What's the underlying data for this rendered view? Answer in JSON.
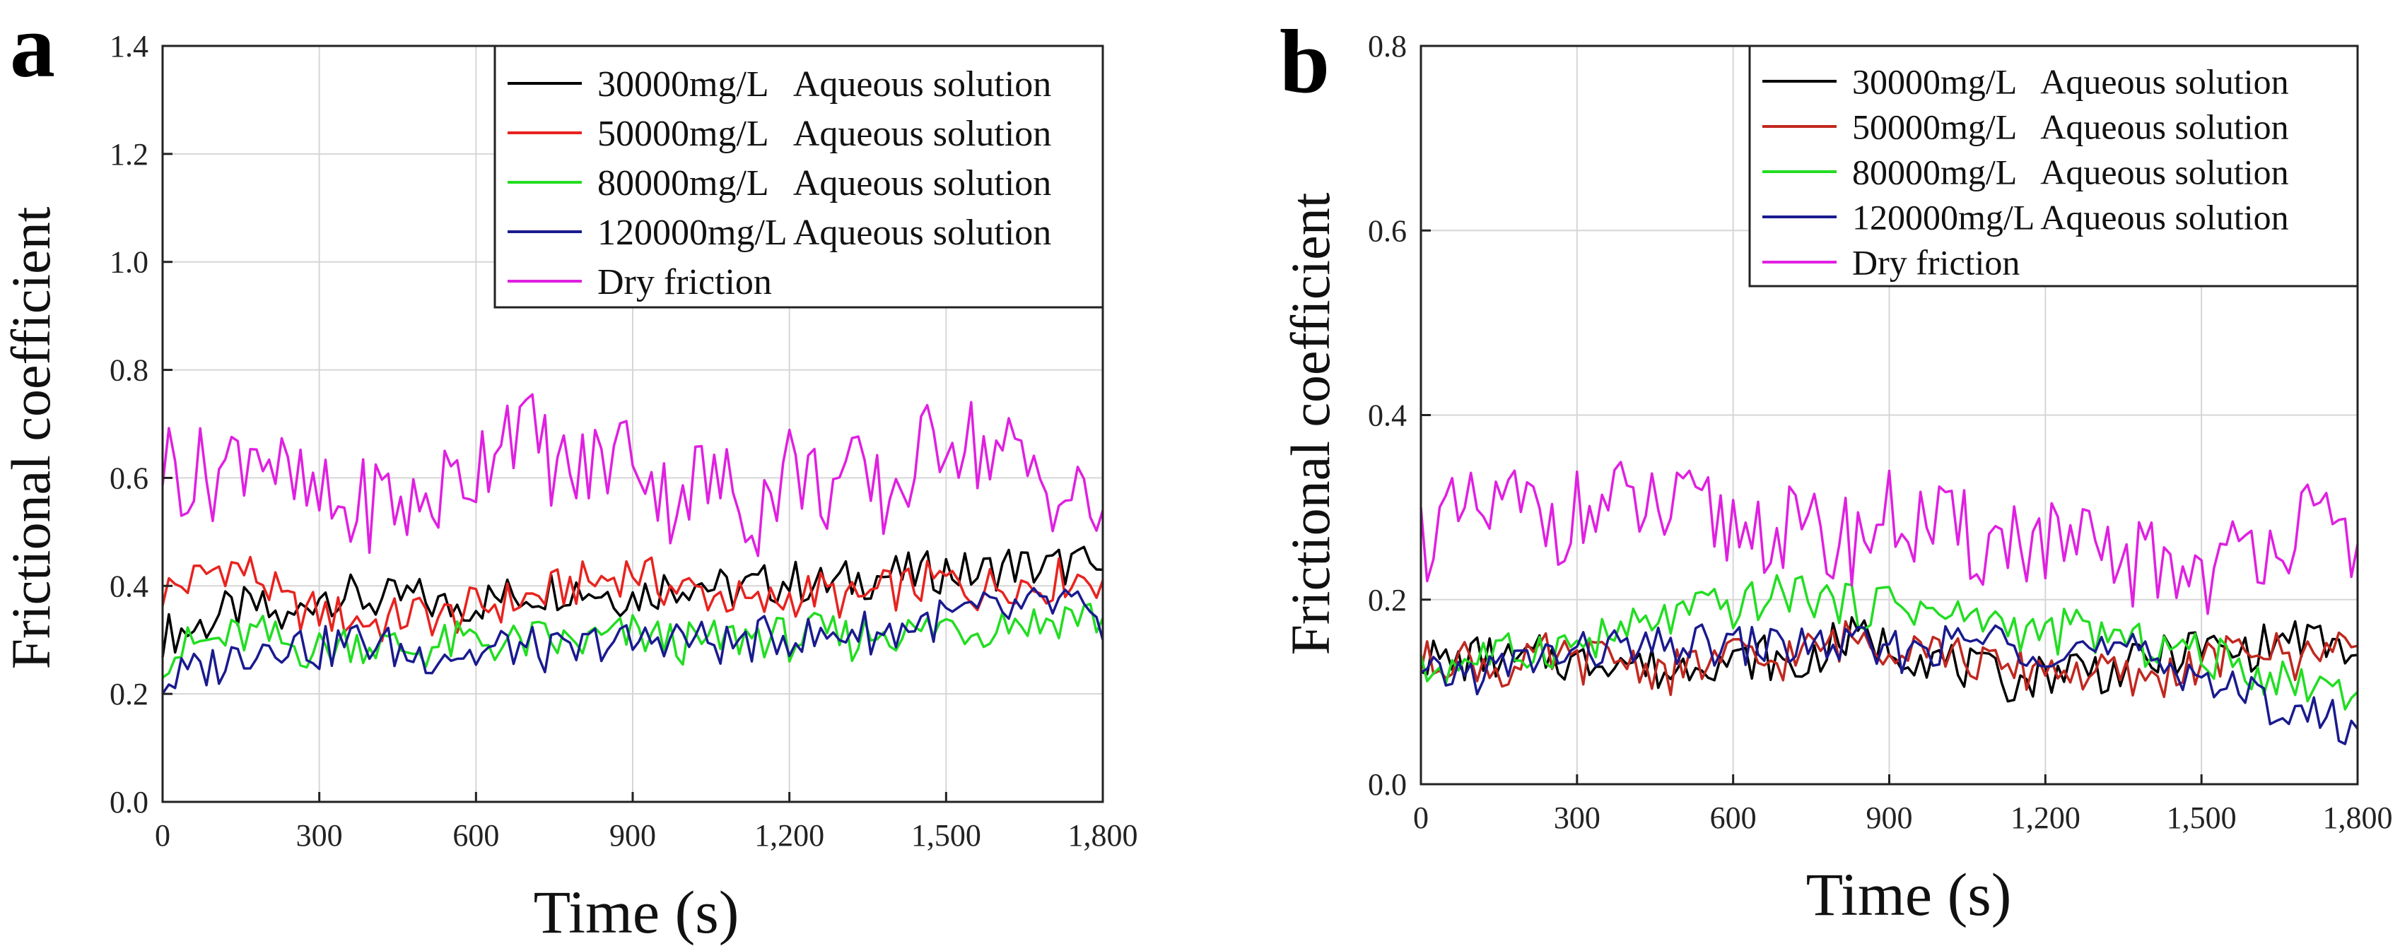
{
  "panels": [
    {
      "letter": "a"
    },
    {
      "letter": "b"
    }
  ],
  "chart_data": [
    {
      "type": "line",
      "panel": "a",
      "xlabel": "Time (s)",
      "ylabel": "Frictional coefficient",
      "xlim": [
        0,
        1800
      ],
      "ylim": [
        0,
        1.4
      ],
      "xticks": [
        0,
        300,
        600,
        900,
        1200,
        1500,
        1800
      ],
      "xtick_labels": [
        "0",
        "300",
        "600",
        "900",
        "1,200",
        "1,500",
        "1,800"
      ],
      "yticks": [
        0.0,
        0.2,
        0.4,
        0.6,
        0.8,
        1.0,
        1.2,
        1.4
      ],
      "ytick_labels": [
        "0.0",
        "0.2",
        "0.4",
        "0.6",
        "0.8",
        "1.0",
        "1.2",
        "1.4"
      ],
      "grid": true,
      "legend_position": "top-right",
      "x": [
        0,
        60,
        120,
        180,
        240,
        300,
        360,
        420,
        480,
        540,
        600,
        660,
        720,
        780,
        840,
        900,
        960,
        1020,
        1080,
        1140,
        1200,
        1260,
        1320,
        1380,
        1440,
        1500,
        1560,
        1620,
        1680,
        1740,
        1800
      ],
      "series": [
        {
          "name": "30000mg/L   Aqueous solution",
          "color": "#000000",
          "values": [
            0.31,
            0.32,
            0.35,
            0.36,
            0.33,
            0.39,
            0.38,
            0.37,
            0.38,
            0.36,
            0.37,
            0.38,
            0.39,
            0.4,
            0.39,
            0.38,
            0.4,
            0.41,
            0.39,
            0.4,
            0.41,
            0.4,
            0.41,
            0.42,
            0.42,
            0.43,
            0.42,
            0.44,
            0.43,
            0.44,
            0.43
          ]
        },
        {
          "name": "50000mg/L   Aqueous solution",
          "color": "#e8231f",
          "values": [
            0.39,
            0.41,
            0.44,
            0.42,
            0.36,
            0.35,
            0.34,
            0.33,
            0.35,
            0.34,
            0.36,
            0.37,
            0.38,
            0.4,
            0.41,
            0.43,
            0.4,
            0.39,
            0.38,
            0.36,
            0.38,
            0.39,
            0.37,
            0.39,
            0.4,
            0.41,
            0.39,
            0.41,
            0.4,
            0.42,
            0.41
          ]
        },
        {
          "name": "80000mg/L   Aqueous solution",
          "color": "#22dd22",
          "values": [
            0.27,
            0.29,
            0.3,
            0.31,
            0.29,
            0.28,
            0.3,
            0.29,
            0.28,
            0.29,
            0.3,
            0.29,
            0.3,
            0.29,
            0.3,
            0.31,
            0.3,
            0.29,
            0.3,
            0.31,
            0.3,
            0.31,
            0.3,
            0.32,
            0.31,
            0.33,
            0.32,
            0.34,
            0.33,
            0.35,
            0.34
          ]
        },
        {
          "name": "120000mg/L Aqueous solution",
          "color": "#1a1a8f",
          "values": [
            0.22,
            0.24,
            0.26,
            0.29,
            0.3,
            0.28,
            0.3,
            0.29,
            0.27,
            0.28,
            0.27,
            0.29,
            0.28,
            0.27,
            0.3,
            0.29,
            0.31,
            0.3,
            0.29,
            0.3,
            0.31,
            0.3,
            0.32,
            0.31,
            0.33,
            0.34,
            0.35,
            0.35,
            0.36,
            0.37,
            0.3
          ]
        },
        {
          "name": "Dry friction",
          "color": "#e020e0",
          "values": [
            0.64,
            0.6,
            0.62,
            0.68,
            0.58,
            0.55,
            0.53,
            0.57,
            0.54,
            0.58,
            0.62,
            0.72,
            0.66,
            0.6,
            0.63,
            0.67,
            0.56,
            0.6,
            0.58,
            0.54,
            0.63,
            0.58,
            0.6,
            0.56,
            0.62,
            0.7,
            0.66,
            0.64,
            0.6,
            0.56,
            0.54
          ]
        }
      ]
    },
    {
      "type": "line",
      "panel": "b",
      "xlabel": "Time (s)",
      "ylabel": "Frictional coefficient",
      "xlim": [
        0,
        1800
      ],
      "ylim": [
        0,
        0.8
      ],
      "xticks": [
        0,
        300,
        600,
        900,
        1200,
        1500,
        1800
      ],
      "xtick_labels": [
        "0",
        "300",
        "600",
        "900",
        "1,200",
        "1,500",
        "1,800"
      ],
      "yticks": [
        0.0,
        0.2,
        0.4,
        0.6,
        0.8
      ],
      "ytick_labels": [
        "0.0",
        "0.2",
        "0.4",
        "0.6",
        "0.8"
      ],
      "grid": true,
      "legend_position": "top-right",
      "x": [
        0,
        60,
        120,
        180,
        240,
        300,
        360,
        420,
        480,
        540,
        600,
        660,
        720,
        780,
        840,
        900,
        960,
        1020,
        1080,
        1140,
        1200,
        1260,
        1320,
        1380,
        1440,
        1500,
        1560,
        1620,
        1680,
        1740,
        1800
      ],
      "series": [
        {
          "name": "30000mg/L   Aqueous solution",
          "color": "#000000",
          "values": [
            0.14,
            0.13,
            0.14,
            0.13,
            0.14,
            0.13,
            0.14,
            0.13,
            0.12,
            0.14,
            0.13,
            0.14,
            0.12,
            0.15,
            0.16,
            0.15,
            0.14,
            0.13,
            0.12,
            0.11,
            0.12,
            0.13,
            0.12,
            0.13,
            0.14,
            0.15,
            0.14,
            0.15,
            0.16,
            0.15,
            0.14
          ]
        },
        {
          "name": "50000mg/L   Aqueous solution",
          "color": "#c0281f",
          "values": [
            0.13,
            0.14,
            0.13,
            0.12,
            0.14,
            0.13,
            0.14,
            0.13,
            0.12,
            0.13,
            0.14,
            0.13,
            0.14,
            0.15,
            0.16,
            0.15,
            0.16,
            0.14,
            0.13,
            0.12,
            0.13,
            0.12,
            0.12,
            0.11,
            0.12,
            0.13,
            0.14,
            0.15,
            0.13,
            0.16,
            0.15
          ]
        },
        {
          "name": "80000mg/L   Aqueous solution",
          "color": "#22dd22",
          "values": [
            0.12,
            0.13,
            0.14,
            0.14,
            0.15,
            0.15,
            0.16,
            0.17,
            0.18,
            0.19,
            0.19,
            0.2,
            0.21,
            0.2,
            0.19,
            0.2,
            0.19,
            0.18,
            0.18,
            0.17,
            0.16,
            0.17,
            0.16,
            0.15,
            0.15,
            0.14,
            0.13,
            0.12,
            0.11,
            0.11,
            0.1
          ]
        },
        {
          "name": "120000mg/L Aqueous solution",
          "color": "#1a1a8f",
          "values": [
            0.11,
            0.12,
            0.12,
            0.13,
            0.14,
            0.14,
            0.15,
            0.14,
            0.15,
            0.15,
            0.15,
            0.15,
            0.15,
            0.15,
            0.15,
            0.14,
            0.15,
            0.15,
            0.16,
            0.15,
            0.15,
            0.15,
            0.14,
            0.14,
            0.13,
            0.12,
            0.1,
            0.09,
            0.08,
            0.07,
            0.06
          ]
        },
        {
          "name": "Dry friction",
          "color": "#e020e0",
          "values": [
            0.27,
            0.28,
            0.29,
            0.3,
            0.29,
            0.29,
            0.3,
            0.3,
            0.29,
            0.29,
            0.28,
            0.28,
            0.27,
            0.26,
            0.27,
            0.29,
            0.28,
            0.27,
            0.26,
            0.27,
            0.26,
            0.25,
            0.24,
            0.24,
            0.24,
            0.23,
            0.24,
            0.27,
            0.28,
            0.27,
            0.26
          ]
        }
      ]
    }
  ]
}
